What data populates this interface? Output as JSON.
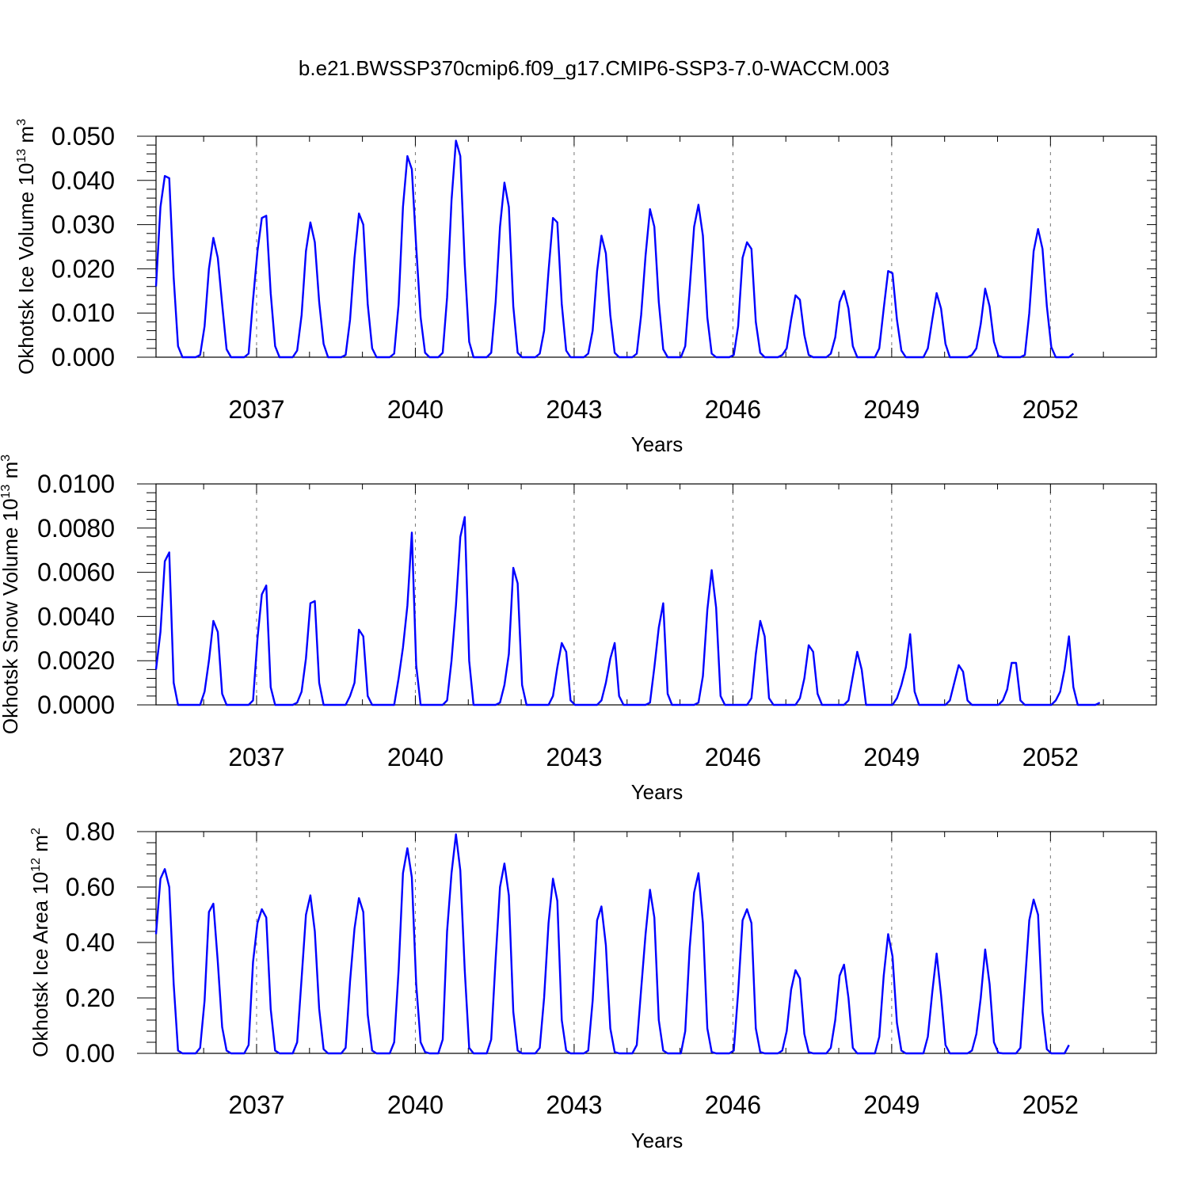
{
  "title": "b.e21.BWSSP370cmip6.f09_g17.CMIP6-SSP3-7.0-WACCM.003",
  "chart_data": [
    {
      "type": "line",
      "ylabel": "Okhotsk Ice Volume 10",
      "ylabel_exp": "13",
      "ylabel_unit": " m",
      "ylabel_unit_exp": "3",
      "xlabel": "Years",
      "ylim": [
        0,
        0.05
      ],
      "yticks": [
        0,
        0.01,
        0.02,
        0.03,
        0.04,
        0.05
      ],
      "ytick_labels": [
        "0.000",
        "0.010",
        "0.020",
        "0.030",
        "0.040",
        "0.050"
      ],
      "xlim": [
        2035.1,
        2054.0
      ],
      "xticks": [
        2037,
        2040,
        2043,
        2046,
        2049,
        2052
      ],
      "xtick_labels": [
        "2037",
        "2040",
        "2043",
        "2046",
        "2049",
        "2052"
      ],
      "color": "#0000ff",
      "series": [
        {
          "x_start": 2035.1,
          "x_step": 0.08333,
          "values": [
            0.016,
            0.034,
            0.041,
            0.0405,
            0.018,
            0.0025,
            0,
            0,
            0,
            0,
            0.0005,
            0.007,
            0.02,
            0.027,
            0.0225,
            0.012,
            0.0018,
            0,
            0,
            0,
            0,
            0.0008,
            0.013,
            0.024,
            0.0315,
            0.032,
            0.0145,
            0.0025,
            0,
            0,
            0,
            0,
            0.0015,
            0.0095,
            0.024,
            0.0305,
            0.026,
            0.0125,
            0.003,
            0,
            0,
            0,
            0,
            0.0005,
            0.0085,
            0.0225,
            0.0325,
            0.03,
            0.012,
            0.002,
            0,
            0,
            0,
            0,
            0.0008,
            0.012,
            0.034,
            0.0455,
            0.0425,
            0.025,
            0.009,
            0.001,
            0,
            0,
            0,
            0.001,
            0.0135,
            0.0355,
            0.049,
            0.0455,
            0.021,
            0.0035,
            0,
            0,
            0,
            0,
            0.001,
            0.0125,
            0.0295,
            0.0395,
            0.034,
            0.0115,
            0.001,
            0,
            0,
            0,
            0,
            0.0008,
            0.006,
            0.0195,
            0.0315,
            0.0305,
            0.012,
            0.0015,
            0,
            0,
            0,
            0,
            0.0008,
            0.006,
            0.0195,
            0.0275,
            0.0235,
            0.0095,
            0.001,
            0,
            0,
            0,
            0,
            0.0008,
            0.0095,
            0.023,
            0.0335,
            0.0295,
            0.0125,
            0.0018,
            0,
            0,
            0,
            0,
            0.0025,
            0.0155,
            0.0295,
            0.0345,
            0.0275,
            0.009,
            0.0008,
            0,
            0,
            0,
            0,
            0.0005,
            0.007,
            0.0225,
            0.026,
            0.0245,
            0.008,
            0.001,
            0,
            0,
            0,
            0,
            0.0005,
            0.002,
            0.0085,
            0.014,
            0.013,
            0.005,
            0.0005,
            0,
            0,
            0,
            0,
            0.0008,
            0.0045,
            0.0125,
            0.015,
            0.011,
            0.0025,
            0,
            0,
            0,
            0,
            0,
            0.002,
            0.011,
            0.0195,
            0.019,
            0.0085,
            0.0015,
            0,
            0,
            0,
            0,
            0,
            0.002,
            0.0085,
            0.0145,
            0.011,
            0.003,
            0,
            0,
            0,
            0,
            0,
            0.0005,
            0.002,
            0.0075,
            0.0155,
            0.0115,
            0.0035,
            0.0003,
            0,
            0,
            0,
            0,
            0,
            0.0005,
            0.01,
            0.024,
            0.029,
            0.0245,
            0.0115,
            0.0023,
            0,
            0,
            0,
            0,
            0.0008
          ]
        }
      ]
    },
    {
      "type": "line",
      "ylabel": "Okhotsk Snow Volume 10",
      "ylabel_exp": "13",
      "ylabel_unit": " m",
      "ylabel_unit_exp": "3",
      "xlabel": "Years",
      "ylim": [
        0,
        0.01
      ],
      "yticks": [
        0,
        0.002,
        0.004,
        0.006,
        0.008,
        0.01
      ],
      "ytick_labels": [
        "0.0000",
        "0.0020",
        "0.0040",
        "0.0060",
        "0.0080",
        "0.0100"
      ],
      "xlim": [
        2035.1,
        2054.0
      ],
      "xticks": [
        2037,
        2040,
        2043,
        2046,
        2049,
        2052
      ],
      "xtick_labels": [
        "2037",
        "2040",
        "2043",
        "2046",
        "2049",
        "2052"
      ],
      "color": "#0000ff",
      "series": [
        {
          "x_start": 2035.1,
          "x_step": 0.08333,
          "values": [
            0.0016,
            0.0033,
            0.0065,
            0.0069,
            0.001,
            0,
            0,
            0,
            0,
            0,
            0,
            0.0006,
            0.002,
            0.0038,
            0.0033,
            0.0005,
            0,
            0,
            0,
            0,
            0,
            0,
            0.0002,
            0.003,
            0.005,
            0.0054,
            0.0008,
            0,
            0,
            0,
            0,
            0,
            0.0001,
            0.0006,
            0.0021,
            0.0046,
            0.0047,
            0.001,
            0,
            0,
            0,
            0,
            0,
            0,
            0.0004,
            0.001,
            0.0034,
            0.0031,
            0.0004,
            0,
            0,
            0,
            0,
            0,
            0,
            0.0012,
            0.0026,
            0.0045,
            0.0078,
            0.0018,
            0,
            0,
            0,
            0,
            0,
            0,
            0.0002,
            0.002,
            0.0045,
            0.0076,
            0.0085,
            0.002,
            0,
            0,
            0,
            0,
            0,
            0,
            0.0001,
            0.0009,
            0.0023,
            0.0062,
            0.0055,
            0.0009,
            0,
            0,
            0,
            0,
            0,
            0,
            0.0004,
            0.0017,
            0.0028,
            0.0024,
            0.0002,
            0,
            0,
            0,
            0,
            0,
            0,
            0.0002,
            0.001,
            0.0021,
            0.0028,
            0.0004,
            0,
            0,
            0,
            0,
            0,
            0,
            0.0001,
            0.0017,
            0.0035,
            0.0046,
            0.0005,
            0,
            0,
            0,
            0,
            0,
            0,
            0.0001,
            0.0013,
            0.0043,
            0.0061,
            0.0044,
            0.0004,
            0,
            0,
            0,
            0,
            0,
            0,
            0.0003,
            0.0023,
            0.0038,
            0.0031,
            0.0003,
            0,
            0,
            0,
            0,
            0,
            0,
            0.0003,
            0.0012,
            0.0027,
            0.0024,
            0.0005,
            0,
            0,
            0,
            0,
            0,
            0,
            0.0002,
            0.0013,
            0.0024,
            0.0016,
            0,
            0,
            0,
            0,
            0,
            0,
            0,
            0.0003,
            0.0009,
            0.0017,
            0.0032,
            0.0006,
            0,
            0,
            0,
            0,
            0,
            0,
            0,
            0.0002,
            0.001,
            0.0018,
            0.0015,
            0.0002,
            0,
            0,
            0,
            0,
            0,
            0,
            0,
            0.0002,
            0.0007,
            0.0019,
            0.0019,
            0.0002,
            0,
            0,
            0,
            0,
            0,
            0,
            0,
            0.0002,
            0.0006,
            0.0016,
            0.0031,
            0.0008,
            0,
            0,
            0,
            0,
            0,
            0.0001
          ]
        }
      ]
    },
    {
      "type": "line",
      "ylabel": "Okhotsk Ice Area 10",
      "ylabel_exp": "12",
      "ylabel_unit": " m",
      "ylabel_unit_exp": "2",
      "xlabel": "Years",
      "ylim": [
        0,
        0.8
      ],
      "yticks": [
        0,
        0.2,
        0.4,
        0.6,
        0.8
      ],
      "ytick_labels": [
        "0.00",
        "0.20",
        "0.40",
        "0.60",
        "0.80"
      ],
      "xlim": [
        2035.1,
        2054.0
      ],
      "xticks": [
        2037,
        2040,
        2043,
        2046,
        2049,
        2052
      ],
      "xtick_labels": [
        "2037",
        "2040",
        "2043",
        "2046",
        "2049",
        "2052"
      ],
      "color": "#0000ff",
      "series": [
        {
          "x_start": 2035.1,
          "x_step": 0.08333,
          "values": [
            0.43,
            0.63,
            0.665,
            0.6,
            0.25,
            0.01,
            0,
            0,
            0,
            0,
            0.02,
            0.19,
            0.51,
            0.54,
            0.33,
            0.095,
            0.01,
            0,
            0,
            0,
            0,
            0.03,
            0.33,
            0.47,
            0.52,
            0.49,
            0.16,
            0.01,
            0,
            0,
            0,
            0,
            0.04,
            0.27,
            0.5,
            0.57,
            0.44,
            0.16,
            0.015,
            0,
            0,
            0,
            0,
            0.02,
            0.26,
            0.45,
            0.56,
            0.51,
            0.14,
            0.01,
            0,
            0,
            0,
            0,
            0.04,
            0.3,
            0.65,
            0.74,
            0.635,
            0.25,
            0.04,
            0.005,
            0,
            0,
            0,
            0.05,
            0.44,
            0.65,
            0.79,
            0.66,
            0.3,
            0.02,
            0,
            0,
            0,
            0,
            0.05,
            0.34,
            0.6,
            0.685,
            0.57,
            0.15,
            0.01,
            0,
            0,
            0,
            0,
            0.02,
            0.2,
            0.47,
            0.63,
            0.55,
            0.12,
            0.01,
            0,
            0,
            0,
            0,
            0.01,
            0.19,
            0.48,
            0.53,
            0.39,
            0.09,
            0.005,
            0,
            0,
            0,
            0,
            0.03,
            0.23,
            0.43,
            0.59,
            0.49,
            0.12,
            0.01,
            0,
            0,
            0,
            0,
            0.08,
            0.38,
            0.58,
            0.65,
            0.47,
            0.09,
            0.005,
            0,
            0,
            0,
            0,
            0.01,
            0.22,
            0.48,
            0.52,
            0.47,
            0.09,
            0.005,
            0,
            0,
            0,
            0,
            0.01,
            0.08,
            0.23,
            0.3,
            0.27,
            0.07,
            0.005,
            0,
            0,
            0,
            0,
            0.02,
            0.12,
            0.28,
            0.32,
            0.2,
            0.02,
            0,
            0,
            0,
            0,
            0,
            0.06,
            0.28,
            0.43,
            0.35,
            0.11,
            0.01,
            0,
            0,
            0,
            0,
            0,
            0.06,
            0.22,
            0.36,
            0.21,
            0.03,
            0,
            0,
            0,
            0,
            0,
            0.01,
            0.07,
            0.2,
            0.375,
            0.25,
            0.04,
            0.002,
            0,
            0,
            0,
            0,
            0.02,
            0.25,
            0.48,
            0.555,
            0.5,
            0.15,
            0.015,
            0,
            0,
            0,
            0,
            0.03
          ]
        }
      ]
    }
  ]
}
